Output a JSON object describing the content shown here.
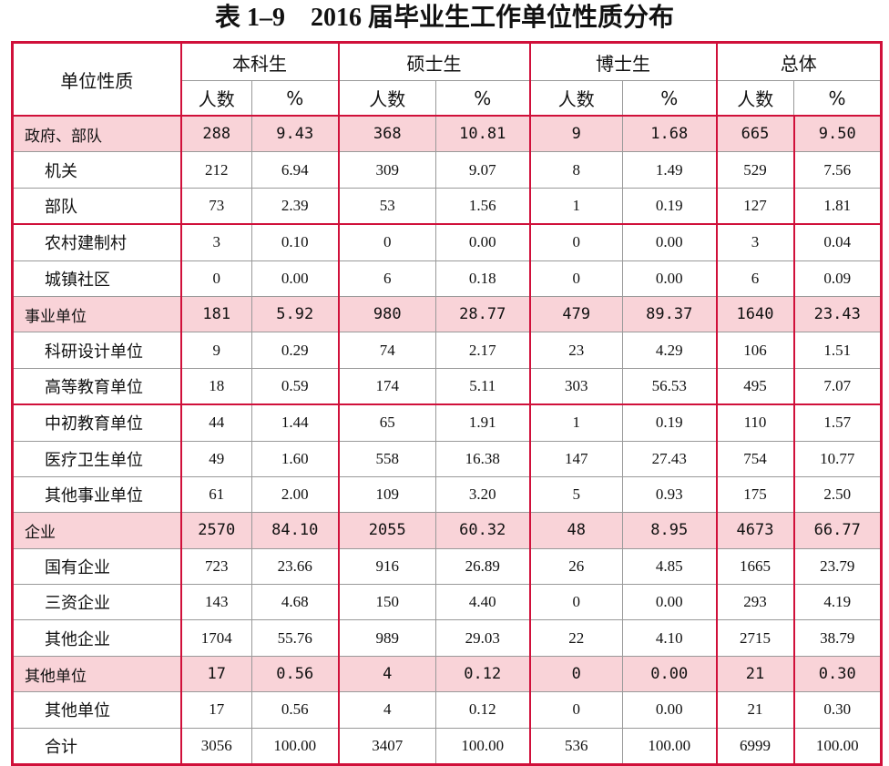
{
  "title": "表 1–9　2016 届毕业生工作单位性质分布",
  "table": {
    "corner": "单位性质",
    "groups": [
      "本科生",
      "硕士生",
      "博士生",
      "总体"
    ],
    "subheaders": [
      "人数",
      "%",
      "人数",
      "%",
      "人数",
      "%",
      "人数",
      "%"
    ],
    "rows": [
      {
        "label": "政府、部队",
        "emphasis": true,
        "cells": [
          "288",
          "9.43",
          "368",
          "10.81",
          "9",
          "1.68",
          "665",
          "9.50"
        ]
      },
      {
        "label": "机关",
        "cells": [
          "212",
          "6.94",
          "309",
          "9.07",
          "8",
          "1.49",
          "529",
          "7.56"
        ]
      },
      {
        "label": "部队",
        "cells": [
          "73",
          "2.39",
          "53",
          "1.56",
          "1",
          "0.19",
          "127",
          "1.81"
        ]
      },
      {
        "label": "农村建制村",
        "cells": [
          "3",
          "0.10",
          "0",
          "0.00",
          "0",
          "0.00",
          "3",
          "0.04"
        ]
      },
      {
        "label": "城镇社区",
        "cells": [
          "0",
          "0.00",
          "6",
          "0.18",
          "0",
          "0.00",
          "6",
          "0.09"
        ]
      },
      {
        "label": "事业单位",
        "emphasis": true,
        "cells": [
          "181",
          "5.92",
          "980",
          "28.77",
          "479",
          "89.37",
          "1640",
          "23.43"
        ]
      },
      {
        "label": "科研设计单位",
        "cells": [
          "9",
          "0.29",
          "74",
          "2.17",
          "23",
          "4.29",
          "106",
          "1.51"
        ]
      },
      {
        "label": "高等教育单位",
        "cells": [
          "18",
          "0.59",
          "174",
          "5.11",
          "303",
          "56.53",
          "495",
          "7.07"
        ]
      },
      {
        "label": "中初教育单位",
        "cells": [
          "44",
          "1.44",
          "65",
          "1.91",
          "1",
          "0.19",
          "110",
          "1.57"
        ]
      },
      {
        "label": "医疗卫生单位",
        "cells": [
          "49",
          "1.60",
          "558",
          "16.38",
          "147",
          "27.43",
          "754",
          "10.77"
        ]
      },
      {
        "label": "其他事业单位",
        "cells": [
          "61",
          "2.00",
          "109",
          "3.20",
          "5",
          "0.93",
          "175",
          "2.50"
        ]
      },
      {
        "label": "企业",
        "emphasis": true,
        "cells": [
          "2570",
          "84.10",
          "2055",
          "60.32",
          "48",
          "8.95",
          "4673",
          "66.77"
        ]
      },
      {
        "label": "国有企业",
        "cells": [
          "723",
          "23.66",
          "916",
          "26.89",
          "26",
          "4.85",
          "1665",
          "23.79"
        ]
      },
      {
        "label": "三资企业",
        "cells": [
          "143",
          "4.68",
          "150",
          "4.40",
          "0",
          "0.00",
          "293",
          "4.19"
        ]
      },
      {
        "label": "其他企业",
        "cells": [
          "1704",
          "55.76",
          "989",
          "29.03",
          "22",
          "4.10",
          "2715",
          "38.79"
        ]
      },
      {
        "label": "其他单位",
        "emphasis": true,
        "cells": [
          "17",
          "0.56",
          "4",
          "0.12",
          "0",
          "0.00",
          "21",
          "0.30"
        ]
      },
      {
        "label": "其他单位",
        "cells": [
          "17",
          "0.56",
          "4",
          "0.12",
          "0",
          "0.00",
          "21",
          "0.30"
        ]
      },
      {
        "label": "合计",
        "cells": [
          "3056",
          "100.00",
          "3407",
          "100.00",
          "536",
          "100.00",
          "6999",
          "100.00"
        ]
      }
    ]
  }
}
